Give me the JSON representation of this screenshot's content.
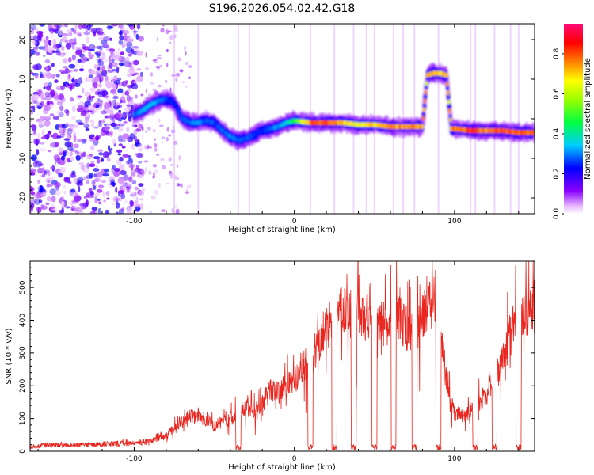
{
  "title": "S196.2026.054.02.42.G18",
  "chart_data": [
    {
      "type": "heatmap",
      "name": "spectrogram",
      "xlabel": "Height of straight line (km)",
      "ylabel": "Frequency (Hz)",
      "xlim": [
        -165,
        150
      ],
      "ylim": [
        -24,
        24
      ],
      "xticks": [
        -100,
        0,
        100
      ],
      "xtick_labels": [
        "-100",
        "0",
        "100"
      ],
      "yticks": [
        -20,
        -10,
        0,
        10,
        20
      ],
      "ytick_labels": [
        "-20",
        "-10",
        "0",
        "10",
        "20"
      ],
      "colorbar": {
        "label": "Normalized spectral amplitude",
        "range": [
          0.0,
          0.95
        ],
        "ticks": [
          0.0,
          0.2,
          0.4,
          0.6,
          0.8
        ],
        "tick_labels": [
          "0.0",
          "0.2",
          "0.4",
          "0.6",
          "0.8"
        ],
        "colormap": "rainbow (magenta-blue-cyan-green-yellow-red-pink)"
      },
      "ridge": {
        "height_km": [
          -100,
          -95,
          -90,
          -85,
          -80,
          -75,
          -70,
          -65,
          -60,
          -55,
          -50,
          -45,
          -40,
          -35,
          -30,
          -25,
          -20,
          -15,
          -10,
          -5,
          0,
          10,
          20,
          30,
          40,
          50,
          60,
          70,
          80,
          83,
          87,
          91,
          95,
          98,
          100,
          110,
          120,
          130,
          140,
          150
        ],
        "frequency_hz": [
          1.0,
          2.0,
          3.5,
          4.5,
          5.0,
          4.0,
          0.0,
          -1.0,
          -1.0,
          -0.5,
          -1.0,
          -3.0,
          -4.5,
          -5.5,
          -5.0,
          -4.0,
          -3.0,
          -2.5,
          -2.0,
          -1.0,
          -0.5,
          -1.0,
          -1.0,
          -1.0,
          -1.5,
          -1.5,
          -2.0,
          -2.0,
          -2.0,
          11.0,
          11.5,
          11.5,
          11.0,
          -2.5,
          -2.5,
          -3.0,
          -3.0,
          -3.0,
          -3.5,
          -3.5
        ],
        "amplitude": [
          0.3,
          0.35,
          0.4,
          0.35,
          0.3,
          0.25,
          0.3,
          0.3,
          0.35,
          0.3,
          0.3,
          0.3,
          0.35,
          0.3,
          0.3,
          0.3,
          0.25,
          0.3,
          0.35,
          0.4,
          0.5,
          0.85,
          0.9,
          0.8,
          0.7,
          0.75,
          0.85,
          0.85,
          0.8,
          0.75,
          0.8,
          0.8,
          0.75,
          0.8,
          0.85,
          0.9,
          0.85,
          0.9,
          0.9,
          0.85
        ]
      },
      "noise_region_km": [
        -165,
        -95
      ]
    },
    {
      "type": "line",
      "name": "snr",
      "xlabel": "Height of straight line (km)",
      "ylabel": "SNR (10 * v/v)",
      "xlim": [
        -165,
        150
      ],
      "ylim": [
        0,
        580
      ],
      "xticks": [
        -100,
        0,
        100
      ],
      "xtick_labels": [
        "-100",
        "0",
        "100"
      ],
      "yticks": [
        0,
        100,
        200,
        300,
        400,
        500
      ],
      "ytick_labels": [
        "0",
        "100",
        "200",
        "300",
        "400",
        "500"
      ],
      "color": "#e8261f",
      "series": [
        {
          "name": "SNR",
          "x": [
            -165,
            -150,
            -130,
            -110,
            -100,
            -90,
            -80,
            -75,
            -70,
            -65,
            -60,
            -55,
            -50,
            -45,
            -40,
            -35,
            -30,
            -25,
            -20,
            -15,
            -10,
            -5,
            0,
            5,
            10,
            15,
            20,
            25,
            30,
            35,
            40,
            45,
            50,
            55,
            60,
            65,
            70,
            75,
            80,
            83,
            85,
            87,
            90,
            93,
            95,
            98,
            100,
            105,
            110,
            115,
            120,
            125,
            130,
            135,
            140,
            145,
            150
          ],
          "y": [
            15,
            20,
            20,
            25,
            25,
            30,
            50,
            70,
            90,
            110,
            110,
            100,
            80,
            90,
            100,
            120,
            140,
            120,
            150,
            190,
            180,
            210,
            220,
            260,
            280,
            330,
            380,
            420,
            440,
            430,
            440,
            420,
            400,
            390,
            410,
            430,
            380,
            360,
            420,
            440,
            450,
            470,
            380,
            300,
            220,
            140,
            120,
            110,
            120,
            150,
            180,
            220,
            280,
            360,
            420,
            430,
            450
          ]
        }
      ],
      "dropouts_km": [
        -35,
        10,
        25,
        37,
        50,
        62,
        75,
        90,
        113,
        125,
        140
      ]
    }
  ]
}
